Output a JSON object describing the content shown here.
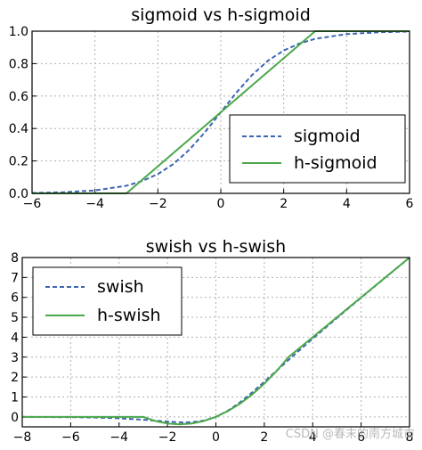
{
  "chart_data": [
    {
      "type": "line",
      "title": "sigmoid vs h-sigmoid",
      "xlim": [
        -6,
        6
      ],
      "ylim": [
        0.0,
        1.0
      ],
      "xticks": [
        "−6",
        "−4",
        "−2",
        "0",
        "2",
        "4",
        "6"
      ],
      "yticks": [
        "0.0",
        "0.2",
        "0.4",
        "0.6",
        "0.8",
        "1.0"
      ],
      "grid": true,
      "legend_position": "lower-right",
      "series": [
        {
          "name": "sigmoid",
          "style": "dashed",
          "color": "#3c64b4",
          "x": [
            -6,
            -5,
            -4,
            -3,
            -2.5,
            -2,
            -1.5,
            -1,
            -0.5,
            0,
            0.5,
            1,
            1.5,
            2,
            2.5,
            3,
            4,
            5,
            6
          ],
          "y": [
            0.002,
            0.007,
            0.018,
            0.047,
            0.076,
            0.119,
            0.182,
            0.269,
            0.378,
            0.5,
            0.622,
            0.731,
            0.818,
            0.881,
            0.924,
            0.953,
            0.982,
            0.993,
            0.998
          ]
        },
        {
          "name": "h-sigmoid",
          "style": "solid",
          "color": "#4aa84a",
          "x": [
            -6,
            -3,
            3,
            6
          ],
          "y": [
            0.0,
            0.0,
            1.0,
            1.0
          ]
        }
      ]
    },
    {
      "type": "line",
      "title": "swish vs h-swish",
      "xlim": [
        -8,
        8
      ],
      "ylim": [
        -0.5,
        8
      ],
      "xticks": [
        "−8",
        "−6",
        "−4",
        "−2",
        "0",
        "2",
        "4",
        "6",
        "8"
      ],
      "yticks": [
        "0",
        "1",
        "2",
        "3",
        "4",
        "5",
        "6",
        "7",
        "8"
      ],
      "grid": true,
      "legend_position": "upper-left",
      "series": [
        {
          "name": "swish",
          "style": "dashed",
          "color": "#3c64b4",
          "x": [
            -8,
            -6,
            -5,
            -4,
            -3,
            -2.5,
            -2,
            -1.5,
            -1.28,
            -1,
            -0.5,
            0,
            0.5,
            1,
            1.5,
            2,
            2.5,
            3,
            3.5,
            4,
            5,
            6,
            7,
            8
          ],
          "y": [
            -0.003,
            -0.015,
            -0.033,
            -0.072,
            -0.142,
            -0.19,
            -0.238,
            -0.273,
            -0.278,
            -0.269,
            -0.189,
            0.0,
            0.311,
            0.731,
            1.227,
            1.762,
            2.31,
            2.858,
            3.396,
            3.928,
            4.967,
            5.985,
            6.994,
            7.997
          ]
        },
        {
          "name": "h-swish",
          "style": "solid",
          "color": "#4aa84a",
          "x": [
            -8,
            -3,
            -2.5,
            -2,
            -1.5,
            -1,
            -0.5,
            0,
            0.5,
            1,
            1.5,
            2,
            2.5,
            3,
            8
          ],
          "y": [
            0.0,
            0.0,
            -0.208,
            -0.333,
            -0.375,
            -0.333,
            -0.208,
            0.0,
            0.292,
            0.667,
            1.125,
            1.667,
            2.292,
            3.0,
            8.0
          ]
        }
      ]
    }
  ],
  "watermark": "CSDN @春末的南方城市"
}
